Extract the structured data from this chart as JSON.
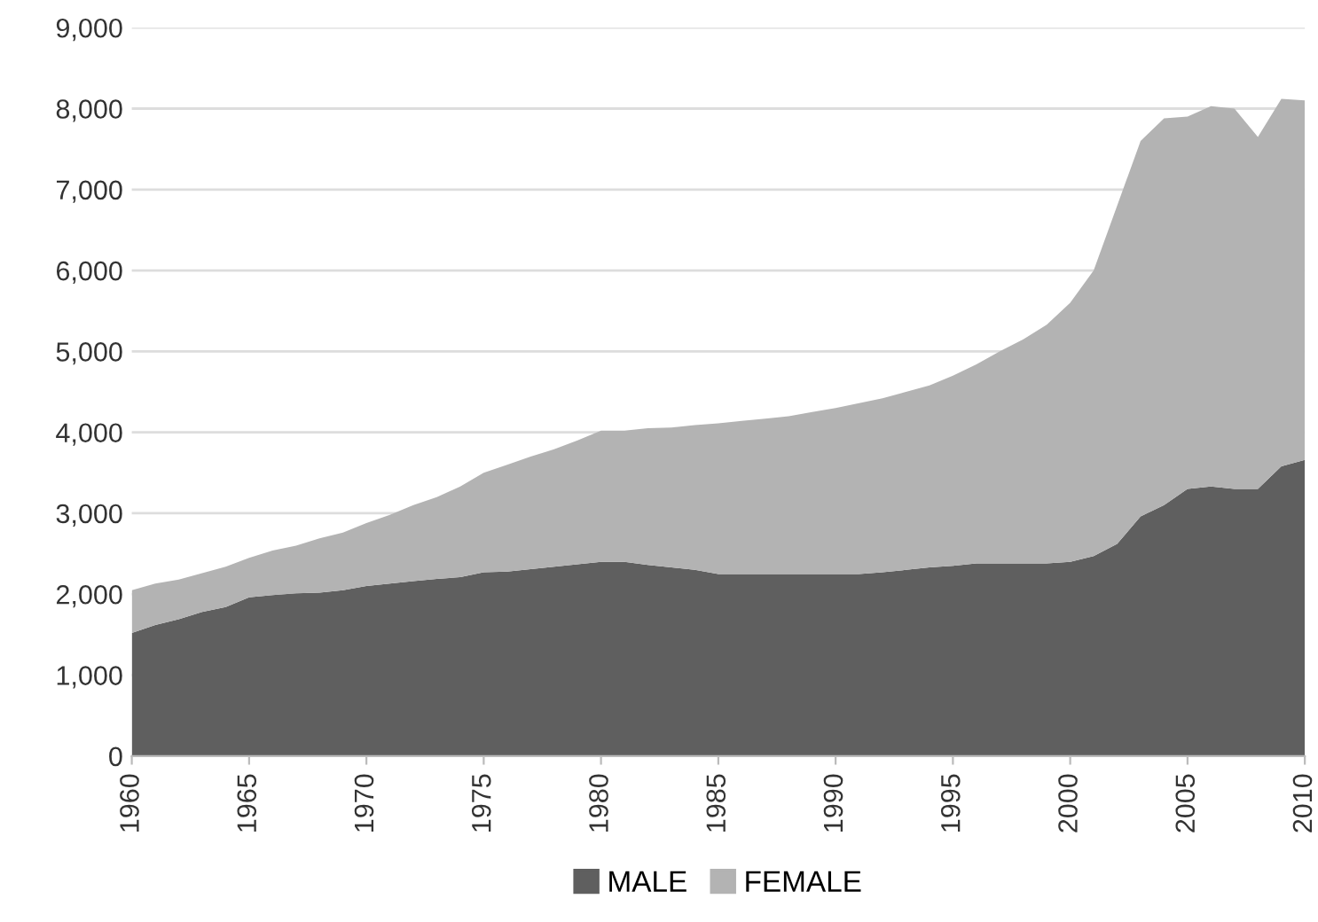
{
  "chart_data": {
    "type": "area",
    "stacked": true,
    "x": [
      1960,
      1961,
      1962,
      1963,
      1964,
      1965,
      1966,
      1967,
      1968,
      1969,
      1970,
      1971,
      1972,
      1973,
      1974,
      1975,
      1976,
      1977,
      1978,
      1979,
      1980,
      1981,
      1982,
      1983,
      1984,
      1985,
      1986,
      1987,
      1988,
      1989,
      1990,
      1991,
      1992,
      1993,
      1994,
      1995,
      1996,
      1997,
      1998,
      1999,
      2000,
      2001,
      2002,
      2003,
      2004,
      2005,
      2006,
      2007,
      2008,
      2009,
      2010
    ],
    "series": [
      {
        "name": "MALE",
        "color": "#5f5f5f",
        "values": [
          1520,
          1620,
          1690,
          1780,
          1840,
          1960,
          1990,
          2010,
          2020,
          2050,
          2100,
          2130,
          2160,
          2190,
          2210,
          2270,
          2280,
          2310,
          2340,
          2370,
          2400,
          2400,
          2360,
          2330,
          2300,
          2250,
          2250,
          2250,
          2250,
          2250,
          2250,
          2250,
          2270,
          2300,
          2330,
          2350,
          2380,
          2380,
          2380,
          2380,
          2400,
          2470,
          2620,
          2960,
          3100,
          3300,
          3330,
          3300,
          3300,
          3580,
          3660
        ]
      },
      {
        "name": "FEMALE",
        "color": "#b3b3b3",
        "values": [
          530,
          510,
          490,
          480,
          500,
          490,
          550,
          590,
          670,
          710,
          780,
          850,
          940,
          1010,
          1120,
          1230,
          1320,
          1390,
          1450,
          1530,
          1620,
          1620,
          1690,
          1730,
          1790,
          1860,
          1890,
          1920,
          1950,
          2000,
          2050,
          2110,
          2150,
          2200,
          2250,
          2350,
          2460,
          2620,
          2770,
          2950,
          3200,
          3530,
          4180,
          4640,
          4780,
          4600,
          4700,
          4700,
          4350,
          4540,
          4440
        ]
      }
    ],
    "xlim": [
      1960,
      2010
    ],
    "xticks": [
      1960,
      1965,
      1970,
      1975,
      1980,
      1985,
      1990,
      1995,
      2000,
      2005,
      2010
    ],
    "ylim": [
      0,
      9000
    ],
    "yticks": [
      {
        "value": 0,
        "label": "0"
      },
      {
        "value": 1000,
        "label": "1,000"
      },
      {
        "value": 2000,
        "label": "2,000"
      },
      {
        "value": 3000,
        "label": "3,000"
      },
      {
        "value": 4000,
        "label": "4,000"
      },
      {
        "value": 5000,
        "label": "5,000"
      },
      {
        "value": 6000,
        "label": "6,000"
      },
      {
        "value": 7000,
        "label": "7,000"
      },
      {
        "value": 8000,
        "label": "8,000"
      },
      {
        "value": 9000,
        "label": "9,000"
      }
    ],
    "grid": "y",
    "legend": "bottom"
  }
}
